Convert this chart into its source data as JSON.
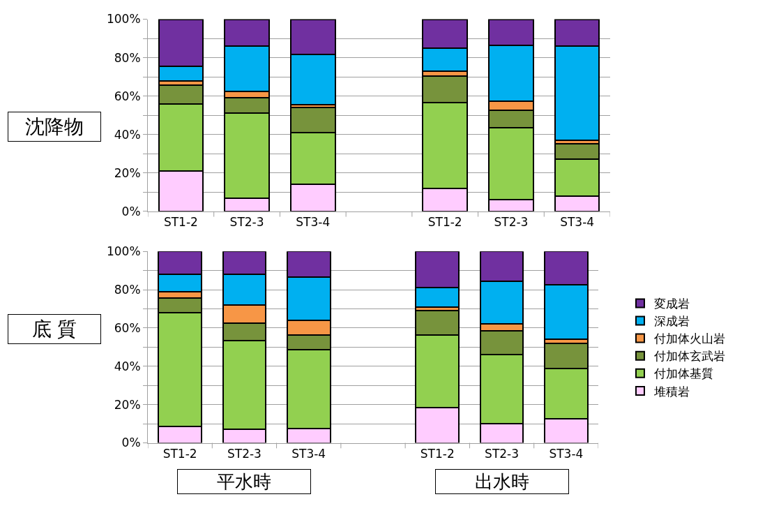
{
  "chart_data": [
    {
      "type": "bar",
      "stacked": true,
      "annotations": [
        "沈降物"
      ],
      "categories": [
        "ST1-2",
        "ST2-3",
        "ST3-4",
        null,
        "ST1-2",
        "ST2-3",
        "ST3-4"
      ],
      "series": [
        {
          "color": "#ffccff",
          "values": [
            21,
            7,
            14,
            null,
            12,
            6,
            8
          ]
        },
        {
          "color": "#92d050",
          "values": [
            35,
            44,
            27,
            null,
            44.5,
            37.5,
            19
          ]
        },
        {
          "color": "#77933c",
          "values": [
            9.5,
            8,
            13,
            null,
            14,
            9,
            8
          ]
        },
        {
          "color": "#f79646",
          "values": [
            2.5,
            3.5,
            1.5,
            null,
            2.5,
            5,
            2
          ]
        },
        {
          "color": "#00b0f0",
          "values": [
            7.5,
            23.5,
            26,
            null,
            12,
            29,
            49
          ]
        },
        {
          "color": "#7030a0",
          "values": [
            24.5,
            14,
            18.5,
            null,
            15,
            13.5,
            14
          ]
        }
      ],
      "ylim": [
        0,
        100
      ],
      "yticks": [
        {
          "value": 0,
          "label": "0%"
        },
        {
          "value": 10,
          "label": null
        },
        {
          "value": 20,
          "label": "20%"
        },
        {
          "value": 30,
          "label": null
        },
        {
          "value": 40,
          "label": "40%"
        },
        {
          "value": 50,
          "label": null
        },
        {
          "value": 60,
          "label": "60%"
        },
        {
          "value": 70,
          "label": null
        },
        {
          "value": 80,
          "label": "80%"
        },
        {
          "value": 90,
          "label": null
        },
        {
          "value": 100,
          "label": "100%"
        }
      ],
      "grid": "y"
    },
    {
      "type": "bar",
      "stacked": true,
      "annotations": [
        "底 質",
        "平水時",
        "出水時"
      ],
      "categories": [
        "ST1-2",
        "ST2-3",
        "ST3-4",
        null,
        "ST1-2",
        "ST2-3",
        "ST3-4"
      ],
      "series": [
        {
          "name": "堆積岩",
          "color": "#ffccff",
          "values": [
            8.5,
            7,
            7.5,
            null,
            18.5,
            10,
            12.5
          ]
        },
        {
          "name": "付加体基質",
          "color": "#92d050",
          "values": [
            59.5,
            46.5,
            41,
            null,
            38,
            36,
            26.5
          ]
        },
        {
          "name": "付加体玄武岩",
          "color": "#77933c",
          "values": [
            7.5,
            9,
            8,
            null,
            12.5,
            12.5,
            13
          ]
        },
        {
          "name": "付加体火山岩",
          "color": "#f79646",
          "values": [
            3.5,
            9.5,
            7.5,
            null,
            2,
            3.5,
            2
          ]
        },
        {
          "name": "深成岩",
          "color": "#00b0f0",
          "values": [
            9,
            16,
            22.5,
            null,
            10,
            22.5,
            28.5
          ]
        },
        {
          "name": "変成岩",
          "color": "#7030a0",
          "values": [
            12,
            12,
            13.5,
            null,
            19,
            15.5,
            17.5
          ]
        }
      ],
      "ylim": [
        0,
        100
      ],
      "yticks": [
        {
          "value": 0,
          "label": "0%"
        },
        {
          "value": 10,
          "label": null
        },
        {
          "value": 20,
          "label": "20%"
        },
        {
          "value": 30,
          "label": null
        },
        {
          "value": 40,
          "label": "40%"
        },
        {
          "value": 50,
          "label": null
        },
        {
          "value": 60,
          "label": "60%"
        },
        {
          "value": 70,
          "label": null
        },
        {
          "value": 80,
          "label": "80%"
        },
        {
          "value": 90,
          "label": null
        },
        {
          "value": 100,
          "label": "100%"
        }
      ],
      "grid": "y",
      "legend": "right"
    }
  ]
}
